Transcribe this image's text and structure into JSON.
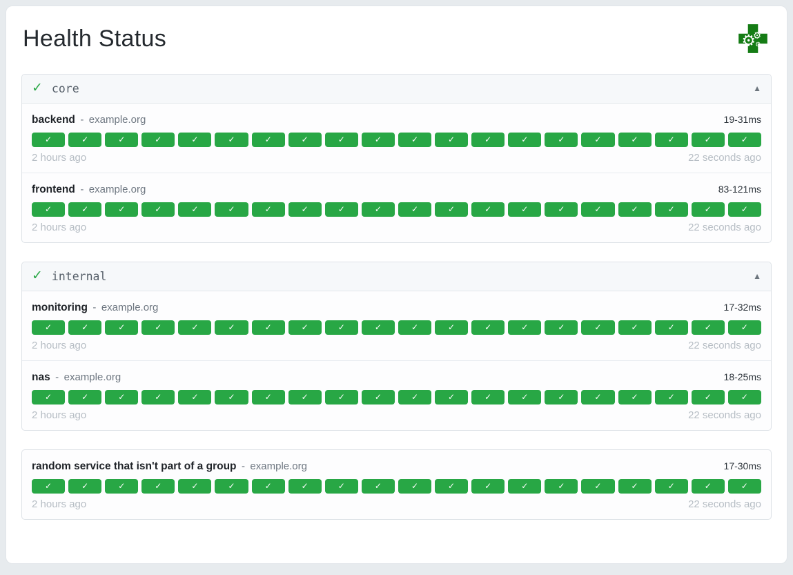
{
  "app": {
    "title": "Health Status"
  },
  "icons": {
    "success_glyph": "✓",
    "collapse_glyph": "▲",
    "gear_glyph": "⚙"
  },
  "colors": {
    "success": "#28a745",
    "logo_green": "#157c15"
  },
  "groups": [
    {
      "name": "core",
      "status": "up",
      "services": [
        {
          "name": "backend",
          "separator": "-",
          "host": "example.org",
          "response_time": "19-31ms",
          "oldest": "2 hours ago",
          "newest": "22 seconds ago",
          "results": [
            "up",
            "up",
            "up",
            "up",
            "up",
            "up",
            "up",
            "up",
            "up",
            "up",
            "up",
            "up",
            "up",
            "up",
            "up",
            "up",
            "up",
            "up",
            "up",
            "up"
          ]
        },
        {
          "name": "frontend",
          "separator": "-",
          "host": "example.org",
          "response_time": "83-121ms",
          "oldest": "2 hours ago",
          "newest": "22 seconds ago",
          "results": [
            "up",
            "up",
            "up",
            "up",
            "up",
            "up",
            "up",
            "up",
            "up",
            "up",
            "up",
            "up",
            "up",
            "up",
            "up",
            "up",
            "up",
            "up",
            "up",
            "up"
          ]
        }
      ]
    },
    {
      "name": "internal",
      "status": "up",
      "services": [
        {
          "name": "monitoring",
          "separator": "-",
          "host": "example.org",
          "response_time": "17-32ms",
          "oldest": "2 hours ago",
          "newest": "22 seconds ago",
          "results": [
            "up",
            "up",
            "up",
            "up",
            "up",
            "up",
            "up",
            "up",
            "up",
            "up",
            "up",
            "up",
            "up",
            "up",
            "up",
            "up",
            "up",
            "up",
            "up",
            "up"
          ]
        },
        {
          "name": "nas",
          "separator": "-",
          "host": "example.org",
          "response_time": "18-25ms",
          "oldest": "2 hours ago",
          "newest": "22 seconds ago",
          "results": [
            "up",
            "up",
            "up",
            "up",
            "up",
            "up",
            "up",
            "up",
            "up",
            "up",
            "up",
            "up",
            "up",
            "up",
            "up",
            "up",
            "up",
            "up",
            "up",
            "up"
          ]
        }
      ]
    },
    {
      "name": null,
      "status": "up",
      "services": [
        {
          "name": "random service that isn't part of a group",
          "separator": "-",
          "host": "example.org",
          "response_time": "17-30ms",
          "oldest": "2 hours ago",
          "newest": "22 seconds ago",
          "results": [
            "up",
            "up",
            "up",
            "up",
            "up",
            "up",
            "up",
            "up",
            "up",
            "up",
            "up",
            "up",
            "up",
            "up",
            "up",
            "up",
            "up",
            "up",
            "up",
            "up"
          ]
        }
      ]
    }
  ]
}
